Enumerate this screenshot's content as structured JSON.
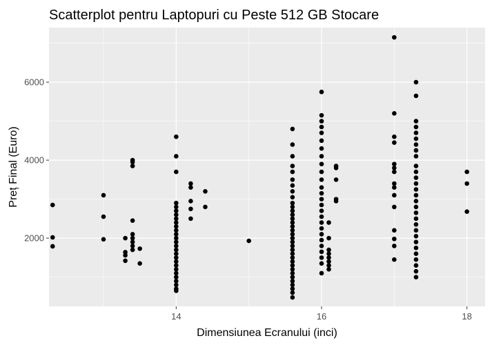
{
  "chart_data": {
    "type": "scatter",
    "title": "Scatterplot pentru Laptopuri cu Peste 512 GB Stocare",
    "xlabel": "Dimensiunea Ecranului (inci)",
    "ylabel": "Preț Final (Euro)",
    "xlim": [
      12.25,
      18.25
    ],
    "ylim": [
      250,
      7400
    ],
    "x_ticks": [
      14,
      16,
      18
    ],
    "x_tick_labels": [
      "14",
      "16",
      "18"
    ],
    "y_ticks": [
      2000,
      4000,
      6000
    ],
    "y_tick_labels": [
      "2000",
      "4000",
      "6000"
    ],
    "grid": true,
    "legend": "none",
    "colors": {
      "panel": "#ebebeb",
      "grid_major": "#ffffff",
      "point": "#000000",
      "tick": "#4d4d4d"
    },
    "points": [
      [
        12.3,
        2850
      ],
      [
        12.3,
        2020
      ],
      [
        12.3,
        1790
      ],
      [
        13.0,
        3100
      ],
      [
        13.0,
        2550
      ],
      [
        13.0,
        1970
      ],
      [
        13.3,
        2000
      ],
      [
        13.3,
        1640
      ],
      [
        13.3,
        1560
      ],
      [
        13.3,
        1420
      ],
      [
        13.4,
        4000
      ],
      [
        13.4,
        3950
      ],
      [
        13.4,
        3850
      ],
      [
        13.4,
        2450
      ],
      [
        13.4,
        2100
      ],
      [
        13.4,
        2000
      ],
      [
        13.4,
        1900
      ],
      [
        13.4,
        1800
      ],
      [
        13.4,
        1700
      ],
      [
        13.5,
        1730
      ],
      [
        13.5,
        1350
      ],
      [
        14.0,
        4600
      ],
      [
        14.0,
        4100
      ],
      [
        14.0,
        3700
      ],
      [
        14.0,
        2900
      ],
      [
        14.0,
        2800
      ],
      [
        14.0,
        2700
      ],
      [
        14.0,
        2600
      ],
      [
        14.0,
        2500
      ],
      [
        14.0,
        2400
      ],
      [
        14.0,
        2300
      ],
      [
        14.0,
        2200
      ],
      [
        14.0,
        2100
      ],
      [
        14.0,
        2000
      ],
      [
        14.0,
        1900
      ],
      [
        14.0,
        1800
      ],
      [
        14.0,
        1700
      ],
      [
        14.0,
        1600
      ],
      [
        14.0,
        1500
      ],
      [
        14.0,
        1400
      ],
      [
        14.0,
        1300
      ],
      [
        14.0,
        1200
      ],
      [
        14.0,
        1100
      ],
      [
        14.0,
        1000
      ],
      [
        14.0,
        900
      ],
      [
        14.0,
        800
      ],
      [
        14.0,
        700
      ],
      [
        14.0,
        650
      ],
      [
        14.2,
        3400
      ],
      [
        14.2,
        3300
      ],
      [
        14.2,
        2950
      ],
      [
        14.2,
        2750
      ],
      [
        14.2,
        2500
      ],
      [
        14.4,
        3200
      ],
      [
        14.4,
        2800
      ],
      [
        15.0,
        1930
      ],
      [
        15.6,
        4800
      ],
      [
        15.6,
        4400
      ],
      [
        15.6,
        4100
      ],
      [
        15.6,
        3850
      ],
      [
        15.6,
        3700
      ],
      [
        15.6,
        3500
      ],
      [
        15.6,
        3350
      ],
      [
        15.6,
        3200
      ],
      [
        15.6,
        3050
      ],
      [
        15.6,
        2900
      ],
      [
        15.6,
        2800
      ],
      [
        15.6,
        2700
      ],
      [
        15.6,
        2600
      ],
      [
        15.6,
        2500
      ],
      [
        15.6,
        2400
      ],
      [
        15.6,
        2300
      ],
      [
        15.6,
        2200
      ],
      [
        15.6,
        2100
      ],
      [
        15.6,
        2000
      ],
      [
        15.6,
        1900
      ],
      [
        15.6,
        1800
      ],
      [
        15.6,
        1700
      ],
      [
        15.6,
        1600
      ],
      [
        15.6,
        1500
      ],
      [
        15.6,
        1400
      ],
      [
        15.6,
        1300
      ],
      [
        15.6,
        1200
      ],
      [
        15.6,
        1100
      ],
      [
        15.6,
        1000
      ],
      [
        15.6,
        900
      ],
      [
        15.6,
        800
      ],
      [
        15.6,
        700
      ],
      [
        15.6,
        600
      ],
      [
        15.6,
        480
      ],
      [
        16.0,
        5750
      ],
      [
        16.0,
        5150
      ],
      [
        16.0,
        5000
      ],
      [
        16.0,
        4850
      ],
      [
        16.0,
        4700
      ],
      [
        16.0,
        4500
      ],
      [
        16.0,
        4300
      ],
      [
        16.0,
        4100
      ],
      [
        16.0,
        3900
      ],
      [
        16.0,
        3700
      ],
      [
        16.0,
        3500
      ],
      [
        16.0,
        3300
      ],
      [
        16.0,
        3150
      ],
      [
        16.0,
        3000
      ],
      [
        16.0,
        2850
      ],
      [
        16.0,
        2700
      ],
      [
        16.0,
        2550
      ],
      [
        16.0,
        2400
      ],
      [
        16.0,
        2250
      ],
      [
        16.0,
        2100
      ],
      [
        16.0,
        1950
      ],
      [
        16.0,
        1800
      ],
      [
        16.0,
        1650
      ],
      [
        16.0,
        1500
      ],
      [
        16.0,
        1350
      ],
      [
        16.0,
        1100
      ],
      [
        16.1,
        2400
      ],
      [
        16.1,
        2000
      ],
      [
        16.1,
        1700
      ],
      [
        16.1,
        1600
      ],
      [
        16.1,
        1500
      ],
      [
        16.1,
        1400
      ],
      [
        16.1,
        1300
      ],
      [
        16.1,
        1200
      ],
      [
        16.2,
        3850
      ],
      [
        16.2,
        3800
      ],
      [
        16.2,
        3500
      ],
      [
        16.2,
        3000
      ],
      [
        16.2,
        2950
      ],
      [
        17.0,
        7150
      ],
      [
        17.0,
        5200
      ],
      [
        17.0,
        4600
      ],
      [
        17.0,
        4450
      ],
      [
        17.0,
        3900
      ],
      [
        17.0,
        3800
      ],
      [
        17.0,
        3700
      ],
      [
        17.0,
        3400
      ],
      [
        17.0,
        3300
      ],
      [
        17.0,
        3100
      ],
      [
        17.0,
        2800
      ],
      [
        17.0,
        2200
      ],
      [
        17.0,
        1980
      ],
      [
        17.0,
        1800
      ],
      [
        17.0,
        1450
      ],
      [
        17.3,
        6000
      ],
      [
        17.3,
        5650
      ],
      [
        17.3,
        5000
      ],
      [
        17.3,
        4850
      ],
      [
        17.3,
        4700
      ],
      [
        17.3,
        4550
      ],
      [
        17.3,
        4400
      ],
      [
        17.3,
        4250
      ],
      [
        17.3,
        4100
      ],
      [
        17.3,
        3850
      ],
      [
        17.3,
        3700
      ],
      [
        17.3,
        3550
      ],
      [
        17.3,
        3400
      ],
      [
        17.3,
        3250
      ],
      [
        17.3,
        3100
      ],
      [
        17.3,
        2950
      ],
      [
        17.3,
        2800
      ],
      [
        17.3,
        2650
      ],
      [
        17.3,
        2500
      ],
      [
        17.3,
        2350
      ],
      [
        17.3,
        2200
      ],
      [
        17.3,
        2050
      ],
      [
        17.3,
        1900
      ],
      [
        17.3,
        1750
      ],
      [
        17.3,
        1600
      ],
      [
        17.3,
        1450
      ],
      [
        17.3,
        1300
      ],
      [
        17.3,
        1150
      ],
      [
        17.3,
        1000
      ],
      [
        18.0,
        3700
      ],
      [
        18.0,
        3400
      ],
      [
        18.0,
        2680
      ]
    ]
  }
}
